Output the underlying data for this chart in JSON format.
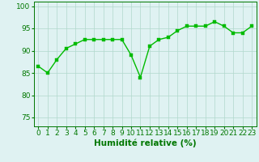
{
  "x": [
    0,
    1,
    2,
    3,
    4,
    5,
    6,
    7,
    8,
    9,
    10,
    11,
    12,
    13,
    14,
    15,
    16,
    17,
    18,
    19,
    20,
    21,
    22,
    23
  ],
  "y": [
    86.5,
    85,
    88,
    90.5,
    91.5,
    92.5,
    92.5,
    92.5,
    92.5,
    92.5,
    89,
    84,
    91,
    92.5,
    93,
    94.5,
    95.5,
    95.5,
    95.5,
    96.5,
    95.5,
    94,
    94,
    95.5
  ],
  "line_color": "#00bb00",
  "marker_color": "#00bb00",
  "bg_color": "#dff2f2",
  "grid_color": "#b0d8cc",
  "axis_color": "#007700",
  "xlabel": "Humidité relative (%)",
  "ylim": [
    73,
    101
  ],
  "xlim": [
    -0.5,
    23.5
  ],
  "yticks": [
    75,
    80,
    85,
    90,
    95,
    100
  ],
  "xticks": [
    0,
    1,
    2,
    3,
    4,
    5,
    6,
    7,
    8,
    9,
    10,
    11,
    12,
    13,
    14,
    15,
    16,
    17,
    18,
    19,
    20,
    21,
    22,
    23
  ],
  "xlabel_fontsize": 7.5,
  "tick_fontsize": 6.5,
  "line_width": 1.0,
  "marker_size": 2.5
}
